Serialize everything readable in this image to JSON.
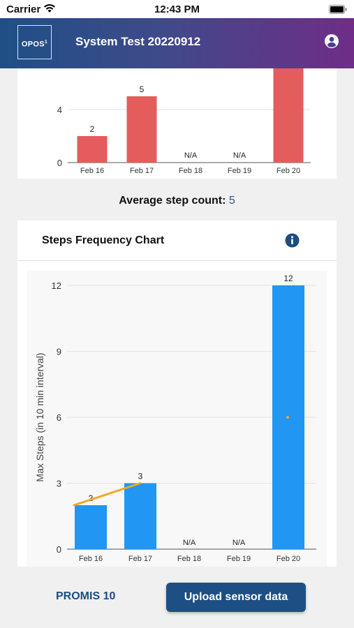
{
  "status_bar": {
    "carrier": "Carrier",
    "time": "12:43 PM",
    "wifi_icon": "wifi-icon",
    "battery_icon": "battery-icon"
  },
  "header": {
    "logo_text": "OPOS",
    "logo_superscript": "1",
    "title": "System Test 20220912",
    "profile_icon": "user-circle-icon"
  },
  "average": {
    "label": "Average step count:",
    "value": "5"
  },
  "freq_card": {
    "title": "Steps Frequency Chart",
    "info_icon": "info-icon"
  },
  "bottom": {
    "promis_label": "PROMIS 10",
    "upload_label": "Upload sensor data"
  },
  "colors": {
    "header_start": "#1f4f86",
    "header_end": "#6f2d87",
    "bar_red": "#e45c5c",
    "bar_blue": "#2196f3",
    "line_orange": "#f5a623",
    "accent": "#1e5b93"
  },
  "chart_data": [
    {
      "type": "bar",
      "categories": [
        "Feb 16",
        "Feb 17",
        "Feb 18",
        "Feb 19",
        "Feb 20"
      ],
      "values": [
        2,
        5,
        null,
        null,
        null
      ],
      "data_labels": [
        "2",
        "5",
        "N/A",
        "N/A",
        ""
      ],
      "y_ticks": [
        "0",
        "4"
      ],
      "bar_color": "#e45c5c",
      "note": "Feb 20 bar extends beyond visible top of the scrolled view"
    },
    {
      "type": "bar",
      "title": "Steps Frequency Chart",
      "ylabel": "Max Steps (in 10 min interval)",
      "categories": [
        "Feb 16",
        "Feb 17",
        "Feb 18",
        "Feb 19",
        "Feb 20"
      ],
      "values": [
        2,
        3,
        null,
        null,
        12
      ],
      "data_labels": [
        "2",
        "3",
        "N/A",
        "N/A",
        "12"
      ],
      "y_ticks": [
        "0",
        "3",
        "6",
        "9",
        "12"
      ],
      "ylim": [
        0,
        12
      ],
      "bar_color": "#2196f3",
      "overlay_line": {
        "color": "#f5a623",
        "values": [
          2,
          3,
          null,
          null,
          6
        ]
      }
    }
  ]
}
